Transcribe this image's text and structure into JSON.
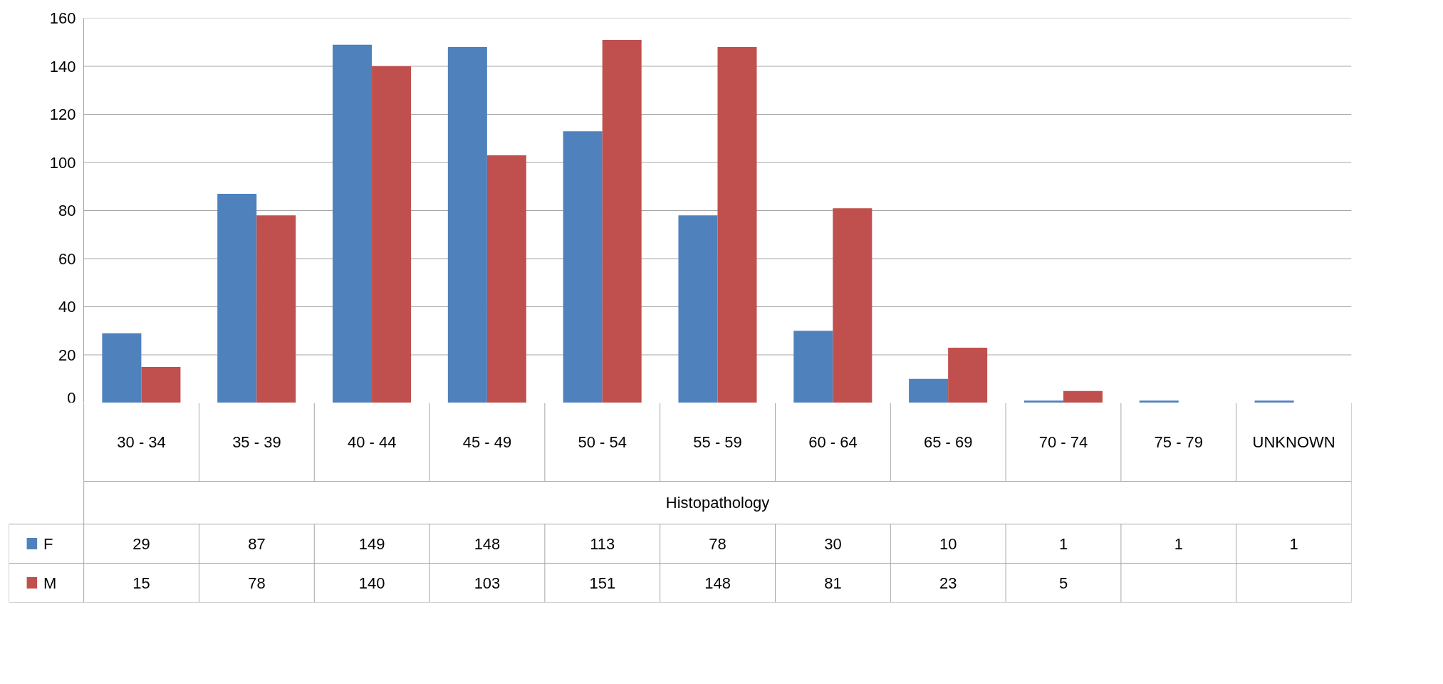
{
  "chart_data": {
    "type": "bar",
    "xlabel": "Histopathology",
    "categories": [
      "30 - 34",
      "35 - 39",
      "40 - 44",
      "45 - 49",
      "50 - 54",
      "55 - 59",
      "60 - 64",
      "65 - 69",
      "70 - 74",
      "75 - 79",
      "UNKNOWN"
    ],
    "series": [
      {
        "name": "F",
        "color": "#4f81bd",
        "values": [
          29,
          87,
          149,
          148,
          113,
          78,
          30,
          10,
          1,
          1,
          1
        ]
      },
      {
        "name": "M",
        "color": "#c0504d",
        "values": [
          15,
          78,
          140,
          103,
          151,
          148,
          81,
          23,
          5,
          null,
          null
        ]
      }
    ],
    "ylim": [
      0,
      160
    ],
    "yticks": [
      0,
      20,
      40,
      60,
      80,
      100,
      120,
      140,
      160
    ],
    "grid": "y",
    "legend": "bottom",
    "data_labels": true
  }
}
